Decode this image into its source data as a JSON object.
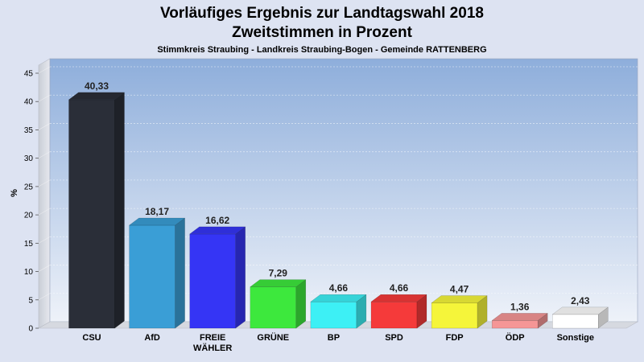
{
  "chart_data": {
    "type": "bar",
    "title": "Vorläufiges Ergebnis zur Landtagswahl 2018",
    "subtitle": "Zweitstimmen in Prozent",
    "subtitle2": "Stimmkreis Straubing - Landkreis Straubing-Bogen - Gemeinde RATTENBERG",
    "ylabel": "%",
    "ylim": [
      0,
      45
    ],
    "yticks": [
      "0",
      "5",
      "10",
      "15",
      "20",
      "25",
      "30",
      "35",
      "40",
      "45"
    ],
    "grid": true,
    "categories": [
      "CSU",
      "AfD",
      "FREIE WÄHLER",
      "GRÜNE",
      "BP",
      "SPD",
      "FDP",
      "ÖDP",
      "Sonstige"
    ],
    "category_lines": [
      [
        "CSU"
      ],
      [
        "AfD"
      ],
      [
        "FREIE",
        "WÄHLER"
      ],
      [
        "GRÜNE"
      ],
      [
        "BP"
      ],
      [
        "SPD"
      ],
      [
        "FDP"
      ],
      [
        "ÖDP"
      ],
      [
        "Sonstige"
      ]
    ],
    "values": [
      40.33,
      18.17,
      16.62,
      7.29,
      4.66,
      4.66,
      4.47,
      1.36,
      2.43
    ],
    "value_labels": [
      "40,33",
      "18,17",
      "16,62",
      "7,29",
      "4,66",
      "4,66",
      "4,47",
      "1,36",
      "2,43"
    ],
    "colors": [
      "#2a2e38",
      "#3a9ed6",
      "#3535f5",
      "#3de83d",
      "#3df0f5",
      "#f53a3a",
      "#f5f53a",
      "#f59696",
      "#ffffff"
    ]
  }
}
